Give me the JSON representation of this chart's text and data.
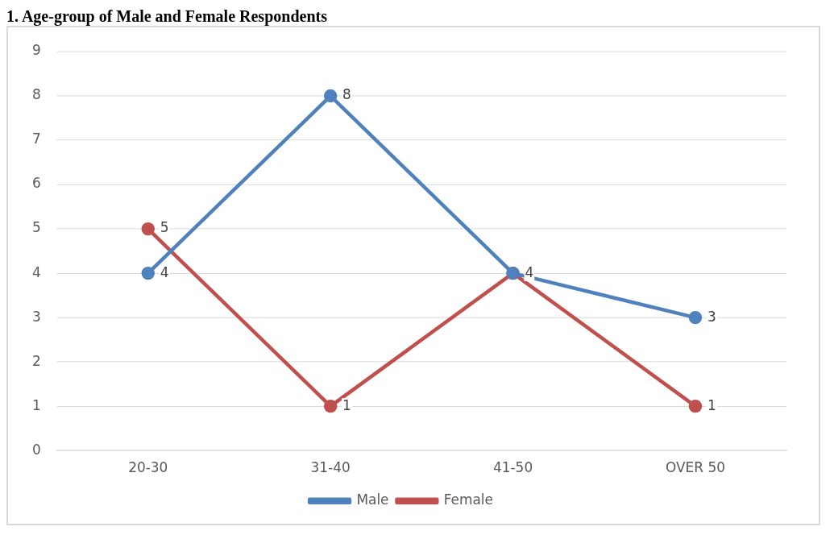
{
  "chart_data": {
    "type": "line",
    "title": "1. Age-group of Male and Female Respondents",
    "categories": [
      "20-30",
      "31-40",
      "41-50",
      "OVER 50"
    ],
    "series": [
      {
        "name": "Male",
        "color": "#4f81bd",
        "values": [
          4,
          8,
          4,
          3
        ],
        "value_labels": [
          "4",
          "8",
          "4",
          "3"
        ]
      },
      {
        "name": "Female",
        "color": "#c0504d",
        "values": [
          5,
          1,
          4,
          1
        ],
        "value_labels": [
          "5",
          "1",
          null,
          "1"
        ]
      }
    ],
    "ylim": [
      0,
      9
    ],
    "yticks": [
      0,
      1,
      2,
      3,
      4,
      5,
      6,
      7,
      8,
      9
    ],
    "grid": "y",
    "legend": "bottom",
    "marker": "circle",
    "line_style": "solid"
  }
}
